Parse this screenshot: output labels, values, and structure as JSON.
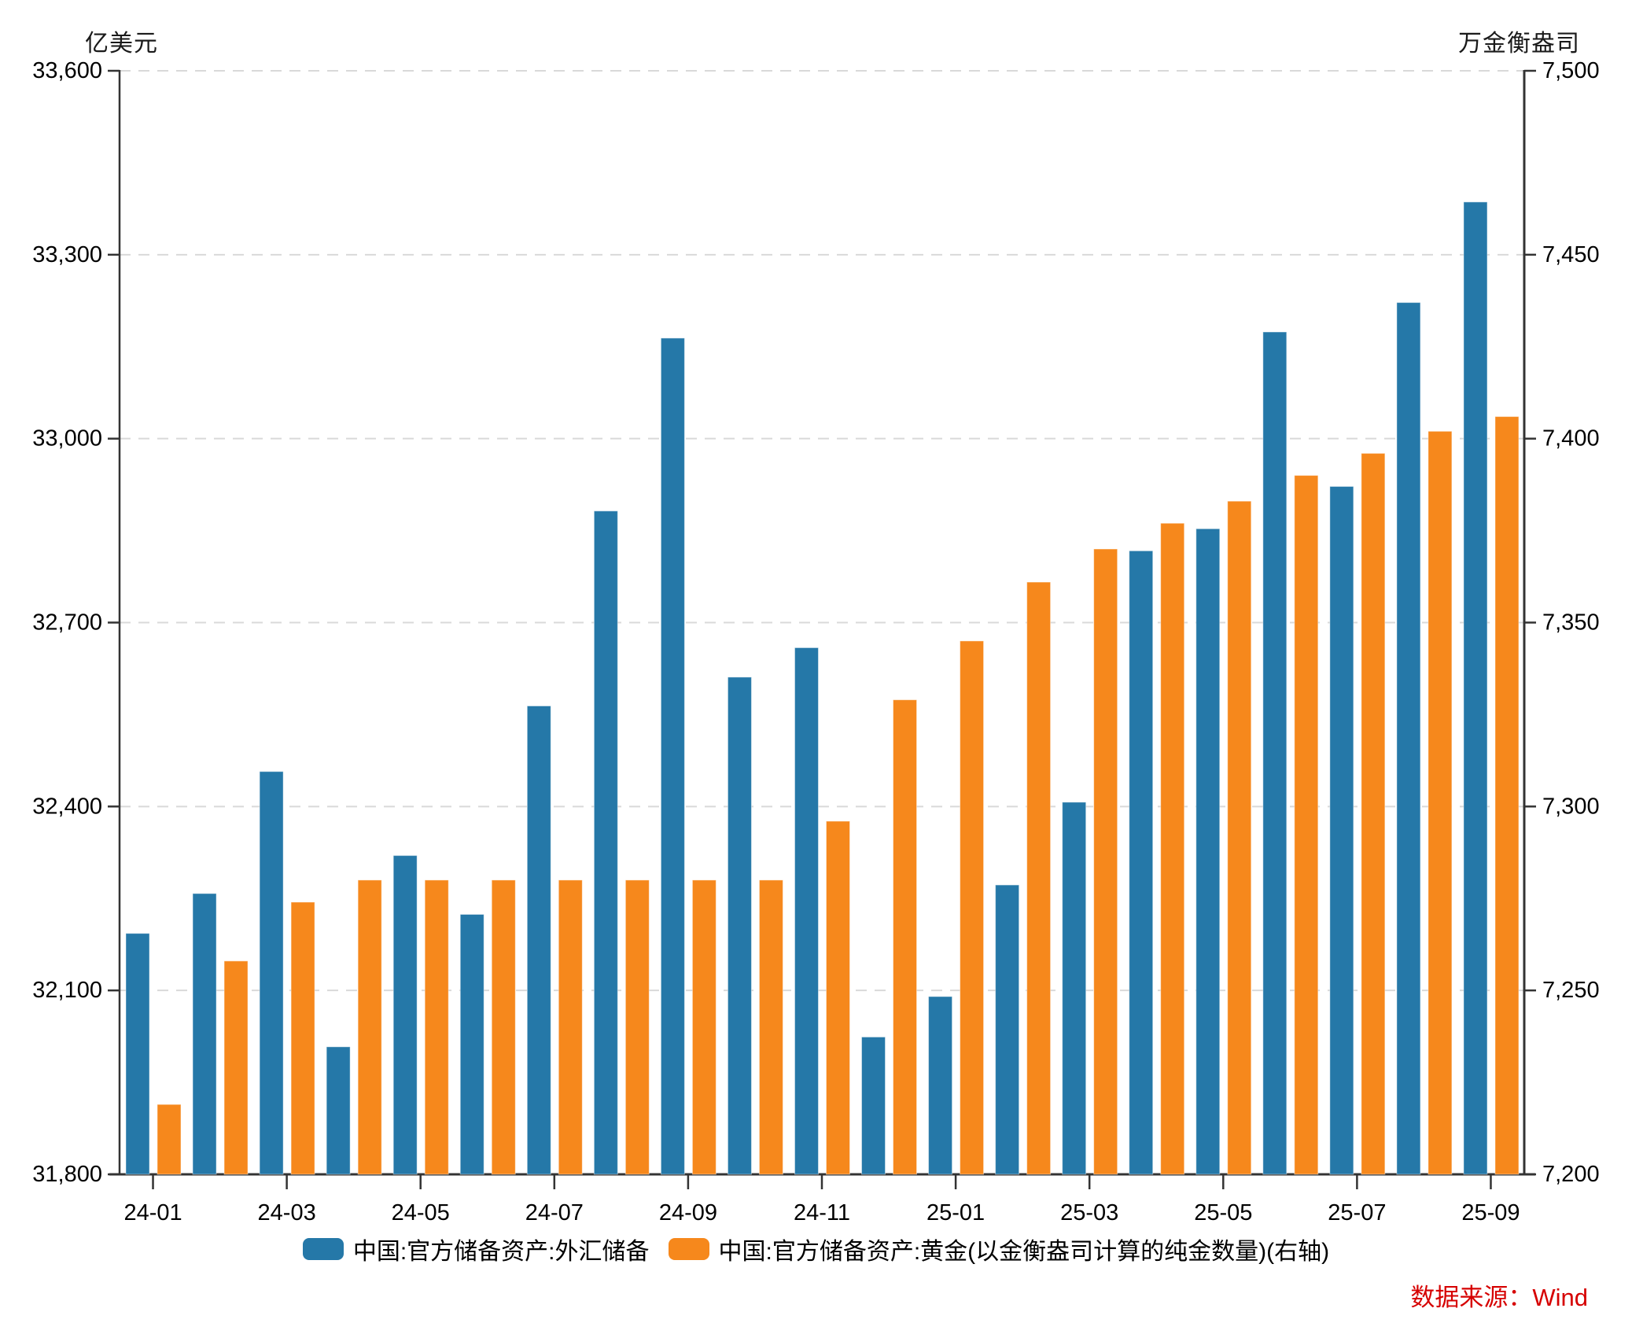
{
  "chart_data": {
    "type": "bar",
    "title": "",
    "categories": [
      "24-01",
      "24-02",
      "24-03",
      "24-04",
      "24-05",
      "24-06",
      "24-07",
      "24-08",
      "24-09",
      "24-10",
      "24-11",
      "24-12",
      "25-01",
      "25-02",
      "25-03",
      "25-04",
      "25-05",
      "25-06",
      "25-07",
      "25-08",
      "25-09"
    ],
    "series": [
      {
        "name": "中国:官方储备资产:外汇储备",
        "axis": "left",
        "color": "#2578a8",
        "values": [
          32193,
          32258,
          32457,
          32008,
          32320,
          32224,
          32564,
          32882,
          33164,
          32611,
          32659,
          32024,
          32090,
          32272,
          32407,
          32817,
          32853,
          33174,
          32922,
          33222,
          33386
        ]
      },
      {
        "name": "中国:官方储备资产:黄金(以金衡盎司计算的纯金数量)(右轴)",
        "axis": "right",
        "color": "#f6881c",
        "values": [
          7219,
          7258,
          7274,
          7280,
          7280,
          7280,
          7280,
          7280,
          7280,
          7280,
          7296,
          7329,
          7345,
          7361,
          7370,
          7377,
          7383,
          7390,
          7396,
          7402,
          7406
        ]
      }
    ],
    "left_axis": {
      "unit": "亿美元",
      "min": 31800,
      "max": 33600,
      "tick_step": 300,
      "ticks": [
        "31,800",
        "32,100",
        "32,400",
        "32,700",
        "33,000",
        "33,300",
        "33,600"
      ]
    },
    "right_axis": {
      "unit": "万金衡盎司",
      "min": 7200,
      "max": 7500,
      "tick_step": 50,
      "ticks": [
        "7,200",
        "7,250",
        "7,300",
        "7,350",
        "7,400",
        "7,450",
        "7,500"
      ]
    },
    "x_tick_labels": [
      "24-01",
      "24-03",
      "24-05",
      "24-07",
      "24-09",
      "24-11",
      "25-01",
      "25-03",
      "25-05",
      "25-07",
      "25-09"
    ],
    "grid": "horizontal-dashed",
    "legend_position": "bottom-center"
  },
  "source_note": "数据来源：Wind",
  "colors": {
    "fx_blue": "#2578a8",
    "gold_orange": "#f6881c",
    "source_red": "#d60000",
    "axis": "#333333",
    "gridline": "#d9d9d9",
    "tick_text": "#000000"
  }
}
